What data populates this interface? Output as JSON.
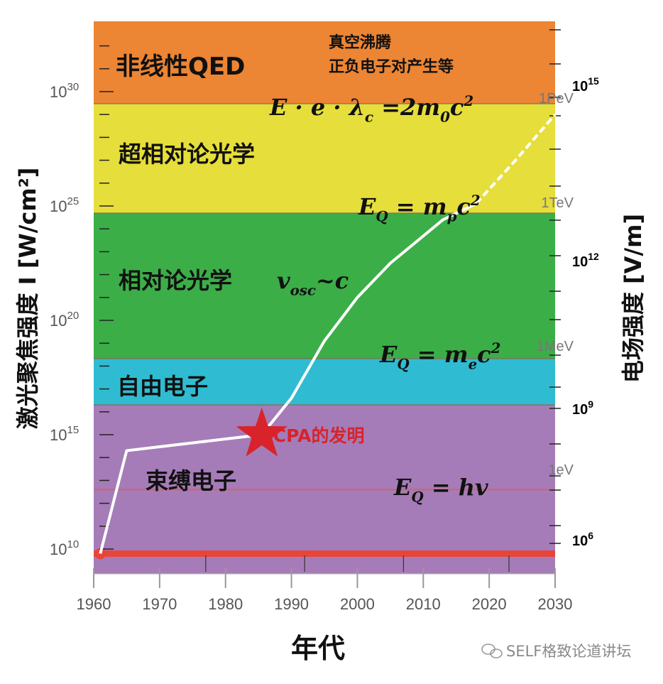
{
  "chart_data": {
    "type": "line",
    "title": "",
    "xlabel": "年代",
    "ylabel": "激光聚焦强度 I [W/cm²]",
    "ylabel_right": "电场强度 [V/m]",
    "xlim": [
      1960,
      2030
    ],
    "ylim_log10": [
      8.9,
      33.1
    ],
    "yscale": "log",
    "x_ticks": [
      "1960",
      "1970",
      "1980",
      "1990",
      "2000",
      "2010",
      "2020",
      "2030"
    ],
    "y_ticks": [
      {
        "base": "10",
        "exp": "30"
      },
      {
        "base": "10",
        "exp": "25"
      },
      {
        "base": "10",
        "exp": "20"
      },
      {
        "base": "10",
        "exp": "15"
      },
      {
        "base": "10",
        "exp": "10"
      }
    ],
    "y_right_ticks": [
      {
        "base": "10",
        "exp": "15"
      },
      {
        "base": "10",
        "exp": "12"
      },
      {
        "base": "10",
        "exp": "9"
      },
      {
        "base": "10",
        "exp": "6"
      }
    ],
    "energy_ticks": [
      "1PeV",
      "1TeV",
      "1MeV",
      "1eV"
    ],
    "regions": [
      {
        "label": "非线性QED",
        "from_log10": 29.47,
        "to_log10": 33.1,
        "color": "#ec8534"
      },
      {
        "label": "超相对论光学",
        "from_log10": 24.7,
        "to_log10": 29.47,
        "color": "#e6de3a"
      },
      {
        "label": "相对论光学",
        "from_log10": 18.3,
        "to_log10": 24.7,
        "color": "#3bae48"
      },
      {
        "label": "自由电子",
        "from_log10": 16.3,
        "to_log10": 18.3,
        "color": "#2fbcd2"
      },
      {
        "label": "束缚电子",
        "from_log10": 8.9,
        "to_log10": 16.3,
        "color": "#a57cb8"
      }
    ],
    "region_note": [
      "真空沸腾",
      "正负电子对产生等"
    ],
    "relativistic_formula": [
      [
        "v",
        "i"
      ],
      [
        "osc",
        "sub"
      ],
      [
        "~c",
        "i"
      ]
    ],
    "formulas": [
      [
        [
          "E · e · λ",
          "i"
        ],
        [
          "c",
          "sub"
        ],
        [
          " =2m",
          "i"
        ],
        [
          "0",
          "sub"
        ],
        [
          "c",
          "i"
        ],
        [
          "2",
          "sup"
        ]
      ],
      [
        [
          "E",
          "i"
        ],
        [
          "Q",
          "sub"
        ],
        [
          " = m",
          "i"
        ],
        [
          "p",
          "sub"
        ],
        [
          "c",
          "i"
        ],
        [
          "2",
          "sup"
        ]
      ],
      [
        [
          "E",
          "i"
        ],
        [
          "Q",
          "sub"
        ],
        [
          " = m",
          "i"
        ],
        [
          "e",
          "sub"
        ],
        [
          "c",
          "i"
        ],
        [
          "2",
          "sup"
        ]
      ],
      [
        [
          "E",
          "i"
        ],
        [
          "Q",
          "sub"
        ],
        [
          " = hv",
          "i"
        ]
      ]
    ],
    "series": [
      {
        "values_solid": [
          [
            1961,
            9.8
          ],
          [
            1965,
            14.3
          ],
          [
            1985.5,
            15.0
          ],
          [
            1990,
            16.6
          ],
          [
            1995,
            19.1
          ],
          [
            2000,
            21.0
          ],
          [
            2005,
            22.5
          ],
          [
            2013,
            24.4
          ],
          [
            2018,
            25.1
          ]
        ],
        "values_dashed": [
          [
            2018,
            25.1
          ],
          [
            2024,
            27.0
          ],
          [
            2030,
            29.0
          ]
        ],
        "color": "#ffffff"
      }
    ],
    "reference_lines": [
      {
        "log10": 9.8,
        "color": "#e8453a"
      },
      {
        "log10": 12.6,
        "color": "#d9606a"
      }
    ],
    "annotation": {
      "label": "CPA的发明",
      "year": 1985.5,
      "log10": 15.0,
      "color": "#d8232a",
      "marker": "star"
    }
  },
  "watermark": {
    "icon": "wechat-icon",
    "text": "SELF格致论道讲坛"
  }
}
